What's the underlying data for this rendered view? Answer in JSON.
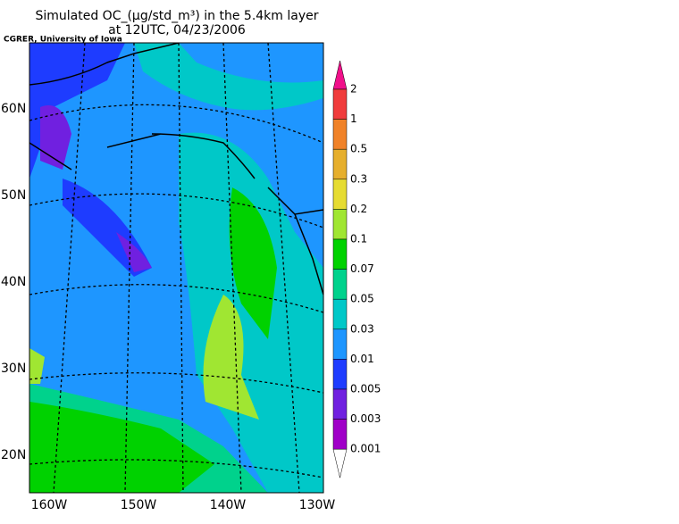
{
  "header": {
    "title": "Simulated OC_(μg/std_m³) in the 5.4km layer",
    "subtitle": "at 12UTC, 04/23/2006",
    "credit": "CGRER, University of Iowa"
  },
  "map": {
    "lat_labels": [
      "60N",
      "50N",
      "40N",
      "30N",
      "20N"
    ],
    "lon_labels": [
      "160W",
      "150W",
      "140W",
      "130W"
    ]
  },
  "colorbar": {
    "labels": [
      "2",
      "1",
      "0.5",
      "0.3",
      "0.2",
      "0.1",
      "0.07",
      "0.05",
      "0.03",
      "0.01",
      "0.005",
      "0.003",
      "0.001"
    ],
    "colors": [
      "#f0108a",
      "#f03c3c",
      "#f08228",
      "#e6af2d",
      "#e6dc32",
      "#a0e632",
      "#00d200",
      "#00d28c",
      "#00c8c8",
      "#1e96ff",
      "#1e3cff",
      "#7020e0",
      "#a000c8",
      "#ffffff"
    ]
  }
}
